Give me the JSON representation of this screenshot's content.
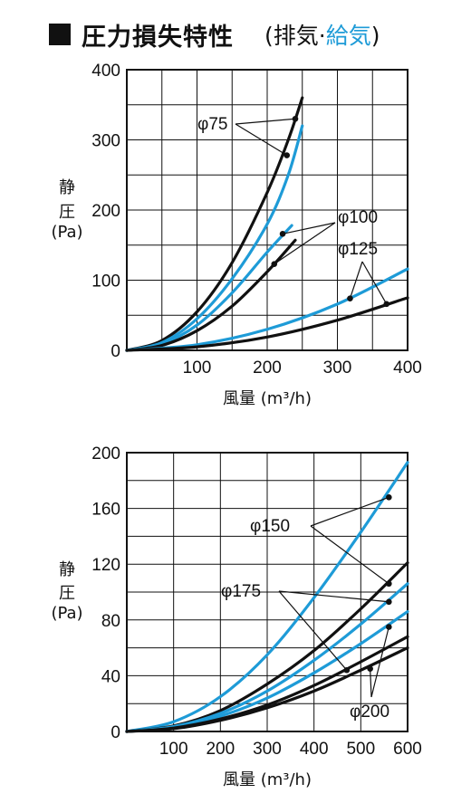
{
  "title": {
    "main": "圧力損失特性",
    "note_open": "(排気·",
    "note_blue": "給気",
    "note_close": ")"
  },
  "colors": {
    "exhaust": "#111111",
    "supply": "#1e9bd7"
  },
  "chart_data": [
    {
      "type": "line",
      "xlabel": "風量 (m³/h)",
      "ylabel_lines": [
        "静",
        "圧",
        "(Pa)"
      ],
      "xlim": [
        0,
        400
      ],
      "ylim": [
        0,
        400
      ],
      "xticks": [
        100,
        200,
        300,
        400
      ],
      "yticks": [
        0,
        100,
        200,
        300,
        400
      ],
      "origin_label": "0",
      "grid": true,
      "series": [
        {
          "name": "φ75",
          "role": "exhaust",
          "points": [
            [
              0,
              0
            ],
            [
              50,
              14
            ],
            [
              100,
              55
            ],
            [
              150,
              125
            ],
            [
              200,
              225
            ],
            [
              230,
              300
            ],
            [
              250,
              360
            ]
          ]
        },
        {
          "name": "φ75",
          "role": "supply",
          "points": [
            [
              0,
              0
            ],
            [
              50,
              11
            ],
            [
              100,
              45
            ],
            [
              150,
              102
            ],
            [
              200,
              180
            ],
            [
              230,
              250
            ],
            [
              250,
              320
            ]
          ]
        },
        {
          "name": "φ100",
          "role": "supply",
          "points": [
            [
              0,
              0
            ],
            [
              50,
              9
            ],
            [
              100,
              36
            ],
            [
              150,
              82
            ],
            [
              200,
              140
            ],
            [
              235,
              178
            ]
          ]
        },
        {
          "name": "φ100",
          "role": "exhaust",
          "points": [
            [
              0,
              0
            ],
            [
              50,
              7
            ],
            [
              100,
              28
            ],
            [
              150,
              63
            ],
            [
              200,
              112
            ],
            [
              240,
              157
            ]
          ]
        },
        {
          "name": "φ125",
          "role": "supply",
          "points": [
            [
              0,
              0
            ],
            [
              100,
              8
            ],
            [
              200,
              30
            ],
            [
              300,
              66
            ],
            [
              400,
              116
            ]
          ]
        },
        {
          "name": "φ125",
          "role": "exhaust",
          "points": [
            [
              0,
              0
            ],
            [
              100,
              5
            ],
            [
              200,
              19
            ],
            [
              300,
              43
            ],
            [
              400,
              75
            ]
          ]
        }
      ],
      "annotations": [
        {
          "label": "φ75",
          "targets": [
            [
              240,
              330
            ],
            [
              228,
              278
            ]
          ]
        },
        {
          "label": "φ100",
          "targets": [
            [
              222,
              166
            ],
            [
              210,
              123
            ]
          ]
        },
        {
          "label": "φ125",
          "targets": [
            [
              318,
              74
            ],
            [
              370,
              66
            ]
          ]
        }
      ]
    },
    {
      "type": "line",
      "xlabel": "風量 (m³/h)",
      "ylabel_lines": [
        "静",
        "圧",
        "(Pa)"
      ],
      "xlim": [
        0,
        600
      ],
      "ylim": [
        0,
        200
      ],
      "xticks": [
        100,
        200,
        300,
        400,
        500,
        600
      ],
      "yticks": [
        0,
        40,
        80,
        120,
        160,
        200
      ],
      "origin_label": "0",
      "grid": true,
      "series": [
        {
          "name": "φ150",
          "role": "supply",
          "points": [
            [
              0,
              0
            ],
            [
              100,
              7
            ],
            [
              200,
              25
            ],
            [
              300,
              55
            ],
            [
              400,
              96
            ],
            [
              500,
              143
            ],
            [
              600,
              193
            ]
          ]
        },
        {
          "name": "φ150",
          "role": "exhaust",
          "points": [
            [
              0,
              0
            ],
            [
              100,
              4
            ],
            [
              200,
              15
            ],
            [
              300,
              34
            ],
            [
              400,
              58
            ],
            [
              500,
              88
            ],
            [
              600,
              121
            ]
          ]
        },
        {
          "name": "φ175",
          "role": "supply",
          "points": [
            [
              0,
              0
            ],
            [
              100,
              3.5
            ],
            [
              200,
              13
            ],
            [
              300,
              29
            ],
            [
              400,
              51
            ],
            [
              500,
              77
            ],
            [
              600,
              106
            ]
          ]
        },
        {
          "name": "φ175",
          "role": "supply",
          "points": [
            [
              0,
              0
            ],
            [
              100,
              3
            ],
            [
              200,
              11
            ],
            [
              300,
              24
            ],
            [
              400,
              42
            ],
            [
              500,
              63
            ],
            [
              600,
              86
            ]
          ]
        },
        {
          "name": "φ200",
          "role": "exhaust",
          "points": [
            [
              0,
              0
            ],
            [
              100,
              2.5
            ],
            [
              200,
              9
            ],
            [
              300,
              19
            ],
            [
              400,
              33
            ],
            [
              500,
              50
            ],
            [
              600,
              68
            ]
          ]
        },
        {
          "name": "φ200",
          "role": "exhaust",
          "points": [
            [
              0,
              0
            ],
            [
              100,
              2
            ],
            [
              200,
              8
            ],
            [
              300,
              17
            ],
            [
              400,
              29
            ],
            [
              500,
              44
            ],
            [
              600,
              60
            ]
          ]
        }
      ],
      "annotations": [
        {
          "label": "φ150",
          "targets": [
            [
              560,
              168
            ],
            [
              560,
              106
            ]
          ]
        },
        {
          "label": "φ175",
          "targets": [
            [
              560,
              93
            ],
            [
              470,
              44
            ]
          ]
        },
        {
          "label": "φ200",
          "targets": [
            [
              520,
              45
            ],
            [
              560,
              75
            ]
          ]
        }
      ]
    }
  ]
}
